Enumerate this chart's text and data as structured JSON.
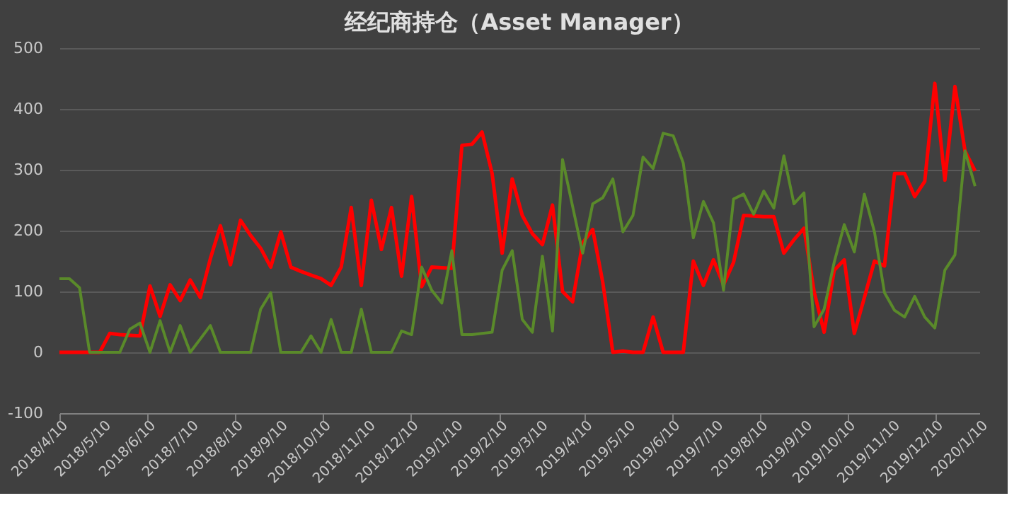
{
  "chart_data": {
    "type": "line",
    "title": "经纪商持仓（Asset Manager）",
    "x": [
      "2018-04-10",
      "2018-04-17",
      "2018-04-24",
      "2018-05-01",
      "2018-05-08",
      "2018-05-15",
      "2018-05-22",
      "2018-05-29",
      "2018-06-05",
      "2018-06-12",
      "2018-06-19",
      "2018-06-26",
      "2018-07-03",
      "2018-07-10",
      "2018-07-17",
      "2018-07-24",
      "2018-07-31",
      "2018-08-07",
      "2018-08-14",
      "2018-08-21",
      "2018-08-28",
      "2018-09-04",
      "2018-09-11",
      "2018-09-18",
      "2018-09-25",
      "2018-10-02",
      "2018-10-09",
      "2018-10-16",
      "2018-10-23",
      "2018-10-30",
      "2018-11-06",
      "2018-11-13",
      "2018-11-20",
      "2018-11-27",
      "2018-12-04",
      "2018-12-11",
      "2018-12-18",
      "2018-12-25",
      "2019-01-01",
      "2019-01-08",
      "2019-01-15",
      "2019-01-22",
      "2019-01-29",
      "2019-02-05",
      "2019-02-12",
      "2019-02-19",
      "2019-02-26",
      "2019-03-05",
      "2019-03-12",
      "2019-03-19",
      "2019-03-26",
      "2019-04-02",
      "2019-04-09",
      "2019-04-16",
      "2019-04-23",
      "2019-04-30",
      "2019-05-07",
      "2019-05-14",
      "2019-05-21",
      "2019-05-28",
      "2019-06-04",
      "2019-06-11",
      "2019-06-18",
      "2019-06-25",
      "2019-07-02",
      "2019-07-09",
      "2019-07-16",
      "2019-07-23",
      "2019-07-30",
      "2019-08-06",
      "2019-08-13",
      "2019-08-20",
      "2019-08-27",
      "2019-09-03",
      "2019-09-10",
      "2019-09-17",
      "2019-09-24",
      "2019-10-01",
      "2019-10-08",
      "2019-10-15",
      "2019-10-22",
      "2019-10-29",
      "2019-11-05",
      "2019-11-12",
      "2019-11-19",
      "2019-11-26",
      "2019-12-03",
      "2019-12-10",
      "2019-12-17",
      "2019-12-24",
      "2019-12-31",
      "2020-01-07"
    ],
    "series": [
      {
        "color": "#ff0000",
        "values": [
          0,
          0,
          0,
          0,
          0,
          31,
          29,
          28,
          27,
          109,
          59,
          111,
          85,
          119,
          90,
          154,
          208,
          144,
          217,
          192,
          171,
          140,
          198,
          140,
          133,
          127,
          121,
          110,
          140,
          238,
          110,
          250,
          169,
          238,
          125,
          256,
          108,
          140,
          139,
          138,
          340,
          342,
          362,
          294,
          163,
          285,
          225,
          195,
          177,
          242,
          100,
          83,
          180,
          202,
          115,
          0,
          2,
          0,
          0,
          58,
          0,
          0,
          0,
          150,
          110,
          152,
          111,
          148,
          225,
          224,
          223,
          223,
          163,
          185,
          204,
          100,
          33,
          135,
          152,
          31,
          90,
          150,
          142,
          294,
          294,
          256,
          281,
          442,
          283,
          437,
          331,
          298
        ]
      },
      {
        "color": "#5a8a2a",
        "values": [
          121,
          121,
          106,
          0,
          0,
          0,
          0,
          38,
          48,
          0,
          52,
          0,
          44,
          0,
          22,
          44,
          0,
          0,
          0,
          0,
          71,
          98,
          0,
          0,
          0,
          27,
          0,
          54,
          0,
          0,
          71,
          0,
          0,
          0,
          35,
          29,
          140,
          102,
          81,
          167,
          29,
          29,
          31,
          33,
          135,
          167,
          54,
          33,
          158,
          35,
          317,
          240,
          163,
          244,
          254,
          285,
          198,
          225,
          321,
          302,
          360,
          356,
          311,
          188,
          248,
          213,
          102,
          252,
          260,
          227,
          265,
          237,
          323,
          244,
          262,
          42,
          71,
          148,
          210,
          165,
          260,
          198,
          98,
          69,
          58,
          92,
          58,
          40,
          135,
          160,
          331,
          273
        ]
      }
    ],
    "xlim": [
      "2018-04-10",
      "2020-01-10"
    ],
    "xticks": [
      {
        "value": "2018-04-10",
        "label": "2018/4/10"
      },
      {
        "value": "2018-05-10",
        "label": "2018/5/10"
      },
      {
        "value": "2018-06-10",
        "label": "2018/6/10"
      },
      {
        "value": "2018-07-10",
        "label": "2018/7/10"
      },
      {
        "value": "2018-08-10",
        "label": "2018/8/10"
      },
      {
        "value": "2018-09-10",
        "label": "2018/9/10"
      },
      {
        "value": "2018-10-10",
        "label": "2018/10/10"
      },
      {
        "value": "2018-11-10",
        "label": "2018/11/10"
      },
      {
        "value": "2018-12-10",
        "label": "2018/12/10"
      },
      {
        "value": "2019-01-10",
        "label": "2019/1/10"
      },
      {
        "value": "2019-02-10",
        "label": "2019/2/10"
      },
      {
        "value": "2019-03-10",
        "label": "2019/3/10"
      },
      {
        "value": "2019-04-10",
        "label": "2019/4/10"
      },
      {
        "value": "2019-05-10",
        "label": "2019/5/10"
      },
      {
        "value": "2019-06-10",
        "label": "2019/6/10"
      },
      {
        "value": "2019-07-10",
        "label": "2019/7/10"
      },
      {
        "value": "2019-08-10",
        "label": "2019/8/10"
      },
      {
        "value": "2019-09-10",
        "label": "2019/9/10"
      },
      {
        "value": "2019-10-10",
        "label": "2019/10/10"
      },
      {
        "value": "2019-11-10",
        "label": "2019/11/10"
      },
      {
        "value": "2019-12-10",
        "label": "2019/12/10"
      },
      {
        "value": "2020-01-10",
        "label": "2020/1/10"
      }
    ],
    "ylim": [
      -100,
      500
    ],
    "yticks": [
      -100,
      0,
      100,
      200,
      300,
      400,
      500
    ],
    "grid": "y",
    "marker": "none",
    "line_style": "solid"
  }
}
